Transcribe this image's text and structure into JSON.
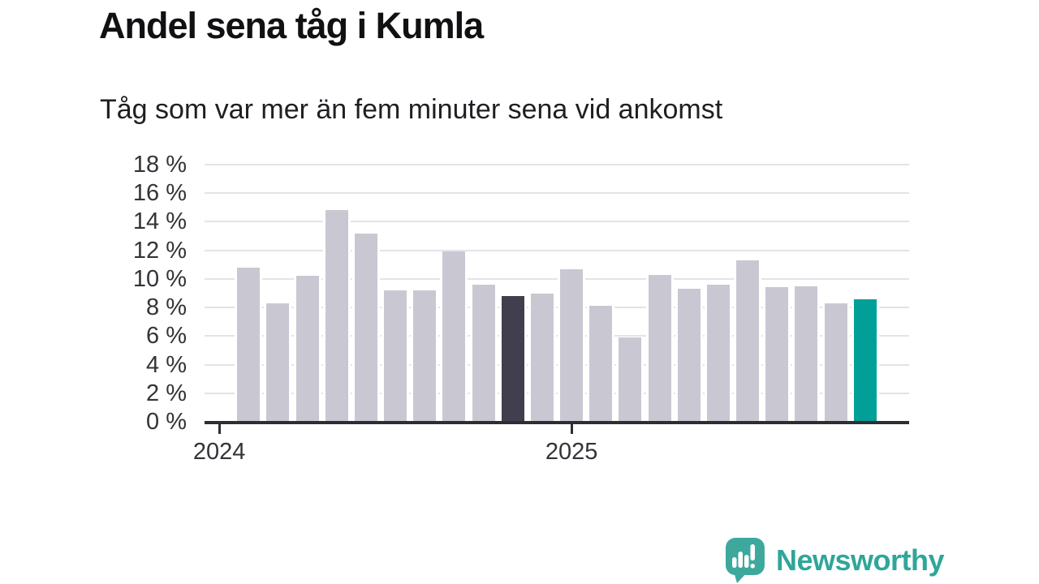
{
  "title": "Andel sena tåg i Kumla",
  "subtitle": "Tåg som var mer än fem minuter sena vid ankomst",
  "branding": {
    "logo_text": "Newsworthy",
    "brand_color": "#2fa69a",
    "logo_icon": "speech-bubble-bar-chart-exclamation"
  },
  "chart_data": {
    "type": "bar",
    "title": "Andel sena tåg i Kumla",
    "subtitle": "Tåg som var mer än fem minuter sena vid ankomst",
    "xlabel": "",
    "ylabel": "",
    "unit": "%",
    "ylim": [
      0,
      18
    ],
    "grid": true,
    "legend": false,
    "yticks": [
      {
        "value": 18,
        "label": "18 %"
      },
      {
        "value": 16,
        "label": "16 %"
      },
      {
        "value": 14,
        "label": "14 %"
      },
      {
        "value": 12,
        "label": "12 %"
      },
      {
        "value": 10,
        "label": "10 %"
      },
      {
        "value": 8,
        "label": "8 %"
      },
      {
        "value": 6,
        "label": "6 %"
      },
      {
        "value": 4,
        "label": "4 %"
      },
      {
        "value": 2,
        "label": "2 %"
      },
      {
        "value": 0,
        "label": "0 %"
      }
    ],
    "x_slots": 24,
    "x_slot_note": "monthly slots Jan 2024 - Dec 2025; first and last slot have no bar",
    "xticks": [
      {
        "slot": 0,
        "label": "2024"
      },
      {
        "slot": 12,
        "label": "2025"
      }
    ],
    "bars": [
      {
        "slot": 1,
        "value": 10.8,
        "kind": "default"
      },
      {
        "slot": 2,
        "value": 8.3,
        "kind": "default"
      },
      {
        "slot": 3,
        "value": 10.2,
        "kind": "default"
      },
      {
        "slot": 4,
        "value": 14.8,
        "kind": "default"
      },
      {
        "slot": 5,
        "value": 13.2,
        "kind": "default"
      },
      {
        "slot": 6,
        "value": 9.2,
        "kind": "default"
      },
      {
        "slot": 7,
        "value": 9.2,
        "kind": "default"
      },
      {
        "slot": 8,
        "value": 11.9,
        "kind": "default"
      },
      {
        "slot": 9,
        "value": 9.6,
        "kind": "default"
      },
      {
        "slot": 10,
        "value": 8.8,
        "kind": "dark"
      },
      {
        "slot": 11,
        "value": 9.0,
        "kind": "default"
      },
      {
        "slot": 12,
        "value": 10.7,
        "kind": "default"
      },
      {
        "slot": 13,
        "value": 8.1,
        "kind": "default"
      },
      {
        "slot": 14,
        "value": 5.9,
        "kind": "default"
      },
      {
        "slot": 15,
        "value": 10.3,
        "kind": "default"
      },
      {
        "slot": 16,
        "value": 9.3,
        "kind": "default"
      },
      {
        "slot": 17,
        "value": 9.6,
        "kind": "default"
      },
      {
        "slot": 18,
        "value": 11.3,
        "kind": "default"
      },
      {
        "slot": 19,
        "value": 9.4,
        "kind": "default"
      },
      {
        "slot": 20,
        "value": 9.5,
        "kind": "default"
      },
      {
        "slot": 21,
        "value": 8.3,
        "kind": "default"
      },
      {
        "slot": 22,
        "value": 8.6,
        "kind": "teal"
      }
    ],
    "colors": {
      "default": "#c9c8d2",
      "dark": "#413e4d",
      "teal": "#00a099",
      "gridline": "#e4e3e8",
      "axis": "#2d2d35",
      "text": "#333338"
    }
  }
}
